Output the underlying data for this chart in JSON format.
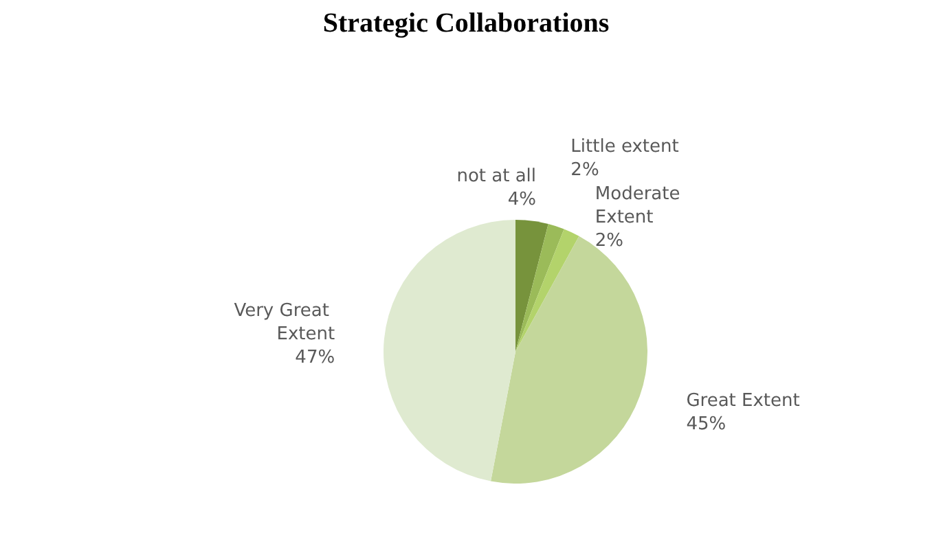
{
  "chart_data": {
    "type": "pie",
    "title": "Strategic Collaborations",
    "categories": [
      "not at all",
      "Little extent",
      "Moderate Extent",
      "Great Extent",
      "Very Great Extent"
    ],
    "values": [
      4,
      2,
      2,
      45,
      47
    ],
    "value_labels": [
      "4%",
      "2%",
      "2%",
      "45%",
      "47%"
    ],
    "colors": [
      "#77933c",
      "#9bbb59",
      "#b3d36b",
      "#c4d79b",
      "#dfead0"
    ]
  }
}
